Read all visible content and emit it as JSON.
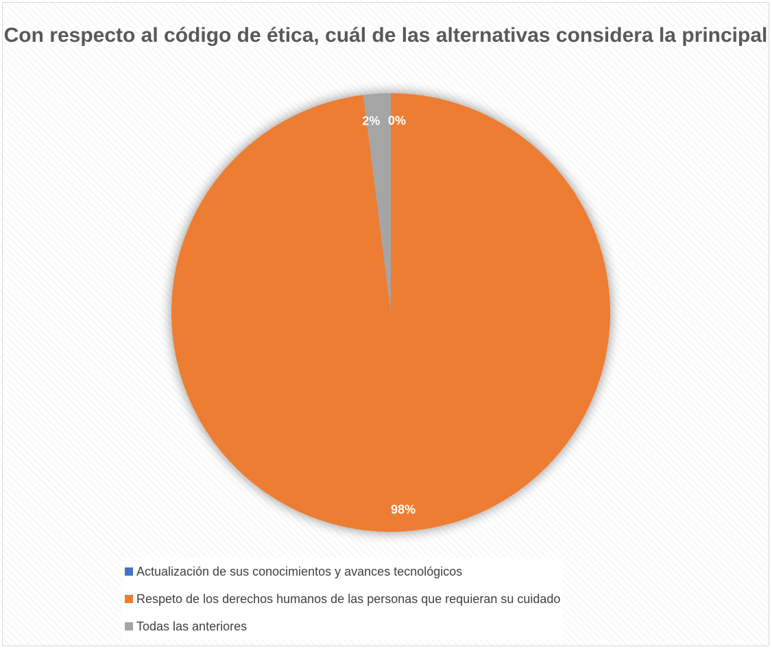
{
  "chart_data": {
    "type": "pie",
    "title": "Con respecto al código de ética, cuál de las alternativas considera la principal",
    "categories": [
      "Actualización de sus conocimientos y avances tecnológicos",
      "Respeto de los derechos humanos de las personas que requieran su cuidado",
      "Todas las anteriores"
    ],
    "values": [
      0,
      98,
      2
    ],
    "data_labels": [
      "0%",
      "98%",
      "2%"
    ],
    "colors": [
      "#4472C4",
      "#ED7D31",
      "#A5A5A5"
    ],
    "legend_position": "bottom",
    "start_angle_deg": 0,
    "direction": "clockwise"
  }
}
